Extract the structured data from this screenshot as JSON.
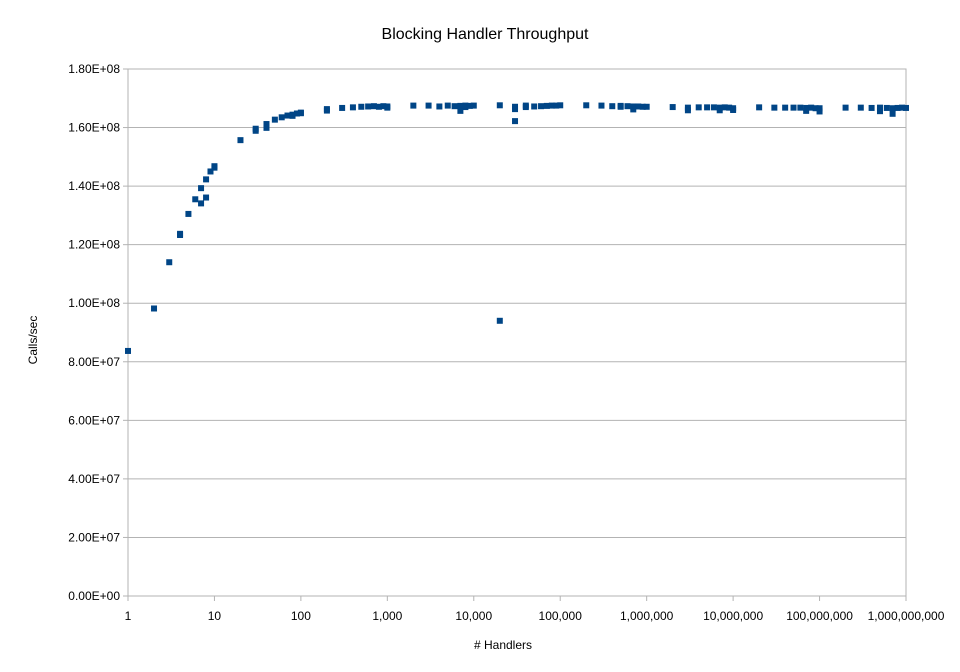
{
  "chart_data": {
    "type": "scatter",
    "title": "Blocking Handler Throughput",
    "xlabel": "# Handlers",
    "ylabel": "Calls/sec",
    "x_scale": "log",
    "xlim": [
      1,
      1000000000
    ],
    "ylim": [
      0,
      180000000
    ],
    "x_ticks": [
      "1",
      "10",
      "100",
      "1,000",
      "10,000",
      "100,000",
      "1,000,000",
      "10,000,000",
      "100,000,000",
      "1,000,000,000"
    ],
    "y_ticks": [
      "0.00E+00",
      "2.00E+07",
      "4.00E+07",
      "6.00E+07",
      "8.00E+07",
      "1.00E+08",
      "1.20E+08",
      "1.40E+08",
      "1.60E+08",
      "1.80E+08"
    ],
    "grid": "horizontal",
    "legend": "none",
    "marker_color": "#004586",
    "points": [
      [
        1,
        83700000
      ],
      [
        2,
        98200000
      ],
      [
        3,
        114000000
      ],
      [
        4,
        123700000
      ],
      [
        4,
        123300000
      ],
      [
        5,
        130500000
      ],
      [
        6,
        135500000
      ],
      [
        7,
        139300000
      ],
      [
        7,
        134100000
      ],
      [
        8,
        142300000
      ],
      [
        8,
        136100000
      ],
      [
        9,
        145000000
      ],
      [
        10,
        146800000
      ],
      [
        10,
        146300000
      ],
      [
        20,
        155700000
      ],
      [
        30,
        158900000
      ],
      [
        30,
        159600000
      ],
      [
        40,
        161200000
      ],
      [
        40,
        159900000
      ],
      [
        50,
        162700000
      ],
      [
        60,
        163500000
      ],
      [
        70,
        164100000
      ],
      [
        80,
        164400000
      ],
      [
        80,
        164000000
      ],
      [
        90,
        164800000
      ],
      [
        100,
        164900000
      ],
      [
        100,
        165100000
      ],
      [
        200,
        166300000
      ],
      [
        200,
        165800000
      ],
      [
        300,
        166700000
      ],
      [
        400,
        166900000
      ],
      [
        500,
        167100000
      ],
      [
        600,
        167200000
      ],
      [
        700,
        167300000
      ],
      [
        800,
        167100000
      ],
      [
        900,
        167300000
      ],
      [
        1000,
        167200000
      ],
      [
        1000,
        166800000
      ],
      [
        2000,
        167500000
      ],
      [
        3000,
        167500000
      ],
      [
        4000,
        167200000
      ],
      [
        5000,
        167500000
      ],
      [
        6000,
        167300000
      ],
      [
        7000,
        167400000
      ],
      [
        7000,
        165700000
      ],
      [
        8000,
        167000000
      ],
      [
        8000,
        167500000
      ],
      [
        9000,
        167400000
      ],
      [
        10000,
        167500000
      ],
      [
        20000,
        167600000
      ],
      [
        20000,
        94000000
      ],
      [
        30000,
        167100000
      ],
      [
        30000,
        162200000
      ],
      [
        30000,
        166300000
      ],
      [
        40000,
        167000000
      ],
      [
        40000,
        167500000
      ],
      [
        50000,
        167200000
      ],
      [
        60000,
        167300000
      ],
      [
        70000,
        167400000
      ],
      [
        80000,
        167500000
      ],
      [
        90000,
        167500000
      ],
      [
        100000,
        167600000
      ],
      [
        200000,
        167600000
      ],
      [
        300000,
        167500000
      ],
      [
        400000,
        167300000
      ],
      [
        500000,
        167400000
      ],
      [
        500000,
        167100000
      ],
      [
        600000,
        167300000
      ],
      [
        700000,
        167200000
      ],
      [
        700000,
        166200000
      ],
      [
        800000,
        167200000
      ],
      [
        900000,
        167100000
      ],
      [
        1000000,
        167100000
      ],
      [
        2000000,
        167000000
      ],
      [
        3000000,
        166800000
      ],
      [
        3000000,
        165900000
      ],
      [
        4000000,
        166900000
      ],
      [
        5000000,
        166900000
      ],
      [
        6000000,
        166900000
      ],
      [
        7000000,
        166800000
      ],
      [
        7000000,
        165900000
      ],
      [
        8000000,
        166900000
      ],
      [
        9000000,
        166800000
      ],
      [
        10000000,
        166600000
      ],
      [
        10000000,
        166000000
      ],
      [
        20000000,
        166900000
      ],
      [
        30000000,
        166800000
      ],
      [
        40000000,
        166800000
      ],
      [
        50000000,
        166800000
      ],
      [
        60000000,
        166800000
      ],
      [
        70000000,
        166700000
      ],
      [
        70000000,
        165700000
      ],
      [
        80000000,
        166800000
      ],
      [
        90000000,
        166600000
      ],
      [
        100000000,
        166600000
      ],
      [
        100000000,
        165500000
      ],
      [
        200000000,
        166800000
      ],
      [
        300000000,
        166800000
      ],
      [
        400000000,
        166700000
      ],
      [
        500000000,
        166800000
      ],
      [
        500000000,
        165600000
      ],
      [
        600000000,
        166700000
      ],
      [
        700000000,
        166600000
      ],
      [
        700000000,
        164700000
      ],
      [
        800000000,
        166700000
      ],
      [
        900000000,
        166800000
      ],
      [
        1000000000,
        166700000
      ]
    ]
  }
}
